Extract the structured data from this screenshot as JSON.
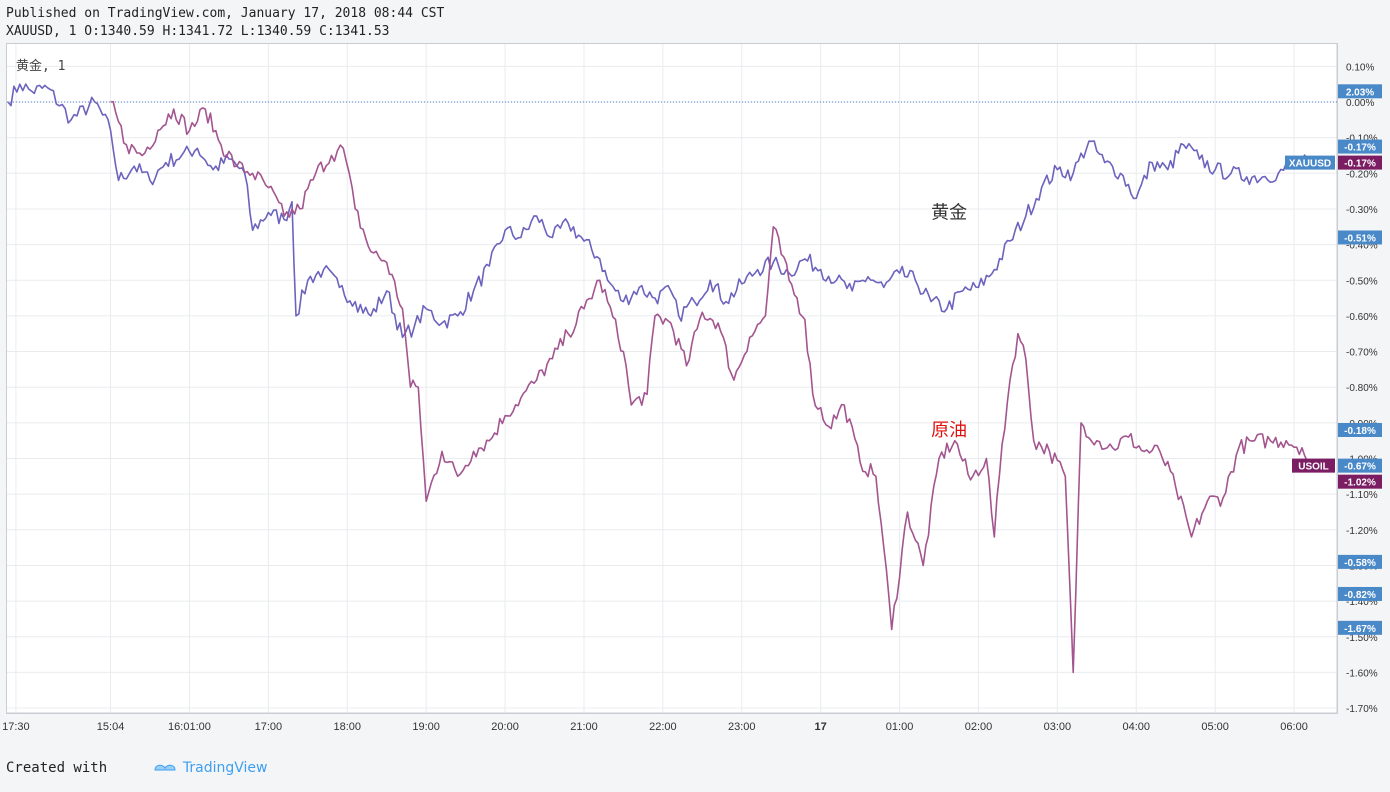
{
  "header": {
    "published": "Published on TradingView.com, January 17, 2018 08:44 CST",
    "ohlc": "XAUUSD, 1 O:1340.59 H:1341.72 L:1340.59 C:1341.53"
  },
  "legend": "黄金, 1",
  "footer": {
    "created_with": "Created with",
    "brand": "TradingView"
  },
  "colors": {
    "gold": "#6b63bd",
    "oil": "#a3558f",
    "badge_blue": "#4a89c8",
    "badge_purple": "#7a1d62",
    "annotation_red": "#e0120f",
    "annotation_gray": "#333333"
  },
  "chart_data": {
    "type": "line",
    "ylabel": "",
    "ylim": [
      -1.72,
      0.12
    ],
    "y_ticks": [
      0.1,
      0.0,
      -0.1,
      -0.2,
      -0.3,
      -0.4,
      -0.5,
      -0.6,
      -0.7,
      -0.8,
      -0.9,
      -1.0,
      -1.1,
      -1.2,
      -1.3,
      -1.4,
      -1.5,
      -1.6,
      -1.7
    ],
    "y_tick_labels": [
      "0.10%",
      "0.00%",
      "-0.10%",
      "-0.20%",
      "-0.30%",
      "-0.40%",
      "-0.50%",
      "-0.60%",
      "-0.70%",
      "-0.80%",
      "-0.90%",
      "-1.00%",
      "-1.10%",
      "-1.20%",
      "-1.30%",
      "-1.40%",
      "-1.50%",
      "-1.60%",
      "-1.70%"
    ],
    "x_ticks": [
      {
        "label": "17:30",
        "x": 0.1
      },
      {
        "label": "15:04",
        "x": 1.3
      },
      {
        "label": "16:01:00",
        "x": 2.3
      },
      {
        "label": "17:00",
        "x": 3.3
      },
      {
        "label": "18:00",
        "x": 4.3
      },
      {
        "label": "19:00",
        "x": 5.3
      },
      {
        "label": "20:00",
        "x": 6.3
      },
      {
        "label": "21:00",
        "x": 7.3
      },
      {
        "label": "22:00",
        "x": 8.3
      },
      {
        "label": "23:00",
        "x": 9.3
      },
      {
        "label": "17",
        "x": 10.3,
        "bold": true
      },
      {
        "label": "01:00",
        "x": 11.3
      },
      {
        "label": "02:00",
        "x": 12.3
      },
      {
        "label": "03:00",
        "x": 13.3
      },
      {
        "label": "04:00",
        "x": 14.3
      },
      {
        "label": "05:00",
        "x": 15.3
      },
      {
        "label": "06:00",
        "x": 16.3
      }
    ],
    "x_range": [
      0.0,
      16.5
    ],
    "series": [
      {
        "name": "黄金",
        "color": "#6b63bd",
        "points": [
          [
            0.0,
            0.0
          ],
          [
            0.15,
            0.05
          ],
          [
            0.3,
            0.03
          ],
          [
            0.5,
            0.04
          ],
          [
            0.8,
            -0.05
          ],
          [
            1.1,
            0.0
          ],
          [
            1.3,
            -0.08
          ],
          [
            1.4,
            -0.22
          ],
          [
            1.6,
            -0.18
          ],
          [
            1.8,
            -0.22
          ],
          [
            2.0,
            -0.17
          ],
          [
            2.2,
            -0.15
          ],
          [
            2.4,
            -0.13
          ],
          [
            2.6,
            -0.19
          ],
          [
            2.8,
            -0.16
          ],
          [
            3.0,
            -0.2
          ],
          [
            3.1,
            -0.36
          ],
          [
            3.3,
            -0.31
          ],
          [
            3.5,
            -0.33
          ],
          [
            3.6,
            -0.28
          ],
          [
            3.65,
            -0.6
          ],
          [
            3.8,
            -0.5
          ],
          [
            4.0,
            -0.47
          ],
          [
            4.2,
            -0.52
          ],
          [
            4.4,
            -0.56
          ],
          [
            4.6,
            -0.6
          ],
          [
            4.8,
            -0.53
          ],
          [
            5.0,
            -0.66
          ],
          [
            5.15,
            -0.63
          ],
          [
            5.3,
            -0.58
          ],
          [
            5.5,
            -0.62
          ],
          [
            5.7,
            -0.6
          ],
          [
            5.9,
            -0.53
          ],
          [
            6.1,
            -0.46
          ],
          [
            6.3,
            -0.36
          ],
          [
            6.5,
            -0.38
          ],
          [
            6.7,
            -0.32
          ],
          [
            6.9,
            -0.38
          ],
          [
            7.1,
            -0.34
          ],
          [
            7.3,
            -0.39
          ],
          [
            7.5,
            -0.44
          ],
          [
            7.6,
            -0.5
          ],
          [
            7.8,
            -0.56
          ],
          [
            8.0,
            -0.52
          ],
          [
            8.2,
            -0.55
          ],
          [
            8.4,
            -0.53
          ],
          [
            8.5,
            -0.6
          ],
          [
            8.7,
            -0.56
          ],
          [
            8.9,
            -0.5
          ],
          [
            9.1,
            -0.56
          ],
          [
            9.3,
            -0.51
          ],
          [
            9.5,
            -0.47
          ],
          [
            9.7,
            -0.45
          ],
          [
            9.9,
            -0.48
          ],
          [
            10.1,
            -0.44
          ],
          [
            10.3,
            -0.47
          ],
          [
            10.5,
            -0.5
          ],
          [
            10.7,
            -0.53
          ],
          [
            10.9,
            -0.49
          ],
          [
            11.1,
            -0.52
          ],
          [
            11.3,
            -0.48
          ],
          [
            11.5,
            -0.5
          ],
          [
            11.7,
            -0.56
          ],
          [
            11.9,
            -0.58
          ],
          [
            12.1,
            -0.53
          ],
          [
            12.3,
            -0.52
          ],
          [
            12.5,
            -0.47
          ],
          [
            12.7,
            -0.39
          ],
          [
            12.9,
            -0.32
          ],
          [
            13.1,
            -0.24
          ],
          [
            13.3,
            -0.19
          ],
          [
            13.5,
            -0.2
          ],
          [
            13.7,
            -0.11
          ],
          [
            13.9,
            -0.17
          ],
          [
            14.1,
            -0.2
          ],
          [
            14.3,
            -0.27
          ],
          [
            14.5,
            -0.17
          ],
          [
            14.7,
            -0.19
          ],
          [
            14.9,
            -0.12
          ],
          [
            15.1,
            -0.16
          ],
          [
            15.3,
            -0.19
          ],
          [
            15.5,
            -0.2
          ],
          [
            15.7,
            -0.21
          ],
          [
            15.9,
            -0.21
          ],
          [
            16.1,
            -0.2
          ],
          [
            16.3,
            -0.17
          ],
          [
            16.5,
            -0.17
          ]
        ]
      },
      {
        "name": "原油",
        "color": "#a3558f",
        "points": [
          [
            1.3,
            0.0
          ],
          [
            1.5,
            -0.12
          ],
          [
            1.7,
            -0.15
          ],
          [
            1.9,
            -0.08
          ],
          [
            2.1,
            -0.02
          ],
          [
            2.3,
            -0.08
          ],
          [
            2.5,
            -0.02
          ],
          [
            2.7,
            -0.12
          ],
          [
            2.9,
            -0.18
          ],
          [
            3.1,
            -0.2
          ],
          [
            3.3,
            -0.24
          ],
          [
            3.5,
            -0.32
          ],
          [
            3.7,
            -0.3
          ],
          [
            3.9,
            -0.2
          ],
          [
            4.1,
            -0.15
          ],
          [
            4.25,
            -0.13
          ],
          [
            4.4,
            -0.3
          ],
          [
            4.6,
            -0.42
          ],
          [
            4.8,
            -0.45
          ],
          [
            5.0,
            -0.58
          ],
          [
            5.1,
            -0.8
          ],
          [
            5.2,
            -0.8
          ],
          [
            5.3,
            -1.12
          ],
          [
            5.5,
            -0.98
          ],
          [
            5.7,
            -1.05
          ],
          [
            5.9,
            -0.98
          ],
          [
            6.1,
            -0.95
          ],
          [
            6.3,
            -0.88
          ],
          [
            6.5,
            -0.83
          ],
          [
            6.7,
            -0.78
          ],
          [
            6.9,
            -0.72
          ],
          [
            7.1,
            -0.65
          ],
          [
            7.3,
            -0.58
          ],
          [
            7.5,
            -0.5
          ],
          [
            7.6,
            -0.56
          ],
          [
            7.8,
            -0.7
          ],
          [
            7.9,
            -0.85
          ],
          [
            8.1,
            -0.82
          ],
          [
            8.2,
            -0.6
          ],
          [
            8.4,
            -0.62
          ],
          [
            8.6,
            -0.74
          ],
          [
            8.8,
            -0.59
          ],
          [
            9.0,
            -0.62
          ],
          [
            9.2,
            -0.78
          ],
          [
            9.4,
            -0.66
          ],
          [
            9.6,
            -0.6
          ],
          [
            9.7,
            -0.35
          ],
          [
            9.9,
            -0.5
          ],
          [
            10.1,
            -0.61
          ],
          [
            10.2,
            -0.82
          ],
          [
            10.4,
            -0.91
          ],
          [
            10.6,
            -0.85
          ],
          [
            10.8,
            -1.01
          ],
          [
            11.0,
            -1.05
          ],
          [
            11.1,
            -1.25
          ],
          [
            11.2,
            -1.48
          ],
          [
            11.4,
            -1.15
          ],
          [
            11.6,
            -1.3
          ],
          [
            11.8,
            -1.0
          ],
          [
            12.0,
            -0.95
          ],
          [
            12.2,
            -1.06
          ],
          [
            12.4,
            -1.0
          ],
          [
            12.5,
            -1.22
          ],
          [
            12.6,
            -0.96
          ],
          [
            12.7,
            -0.78
          ],
          [
            12.8,
            -0.65
          ],
          [
            12.9,
            -0.72
          ],
          [
            13.0,
            -0.95
          ],
          [
            13.2,
            -0.98
          ],
          [
            13.4,
            -1.05
          ],
          [
            13.5,
            -1.6
          ],
          [
            13.6,
            -0.9
          ],
          [
            13.8,
            -0.95
          ],
          [
            14.0,
            -0.97
          ],
          [
            14.2,
            -0.94
          ],
          [
            14.4,
            -0.98
          ],
          [
            14.6,
            -0.98
          ],
          [
            14.8,
            -1.08
          ],
          [
            15.0,
            -1.22
          ],
          [
            15.2,
            -1.12
          ],
          [
            15.4,
            -1.11
          ],
          [
            15.6,
            -0.97
          ],
          [
            15.8,
            -0.95
          ],
          [
            16.0,
            -0.95
          ],
          [
            16.2,
            -0.95
          ],
          [
            16.4,
            -0.97
          ],
          [
            16.5,
            -1.02
          ]
        ]
      }
    ],
    "reference_line": 0.0,
    "annotations": [
      {
        "text": "黄金",
        "x": 11.7,
        "y": -0.31,
        "color": "#333333"
      },
      {
        "text": "原油",
        "x": 11.7,
        "y": -0.92,
        "color": "#e0120f"
      }
    ],
    "badges": [
      {
        "text": "2.03%",
        "y": 0.03,
        "color": "#4a89c8"
      },
      {
        "text": "-0.17%",
        "y": -0.125,
        "color": "#4a89c8"
      },
      {
        "text": "-0.17%",
        "y": -0.17,
        "color": "#7a1d62"
      },
      {
        "text": "XAUUSD",
        "y": -0.17,
        "color": "#4a89c8",
        "label": true
      },
      {
        "text": "-0.51%",
        "y": -0.38,
        "color": "#4a89c8"
      },
      {
        "text": "-0.18%",
        "y": -0.92,
        "color": "#4a89c8"
      },
      {
        "text": "-0.67%",
        "y": -1.02,
        "color": "#4a89c8"
      },
      {
        "text": "USOIL",
        "y": -1.02,
        "color": "#7a1d62",
        "label": true
      },
      {
        "text": "-1.02%",
        "y": -1.065,
        "color": "#7a1d62"
      },
      {
        "text": "-0.58%",
        "y": -1.29,
        "color": "#4a89c8"
      },
      {
        "text": "-0.82%",
        "y": -1.38,
        "color": "#4a89c8"
      },
      {
        "text": "-1.67%",
        "y": -1.475,
        "color": "#4a89c8"
      }
    ]
  }
}
